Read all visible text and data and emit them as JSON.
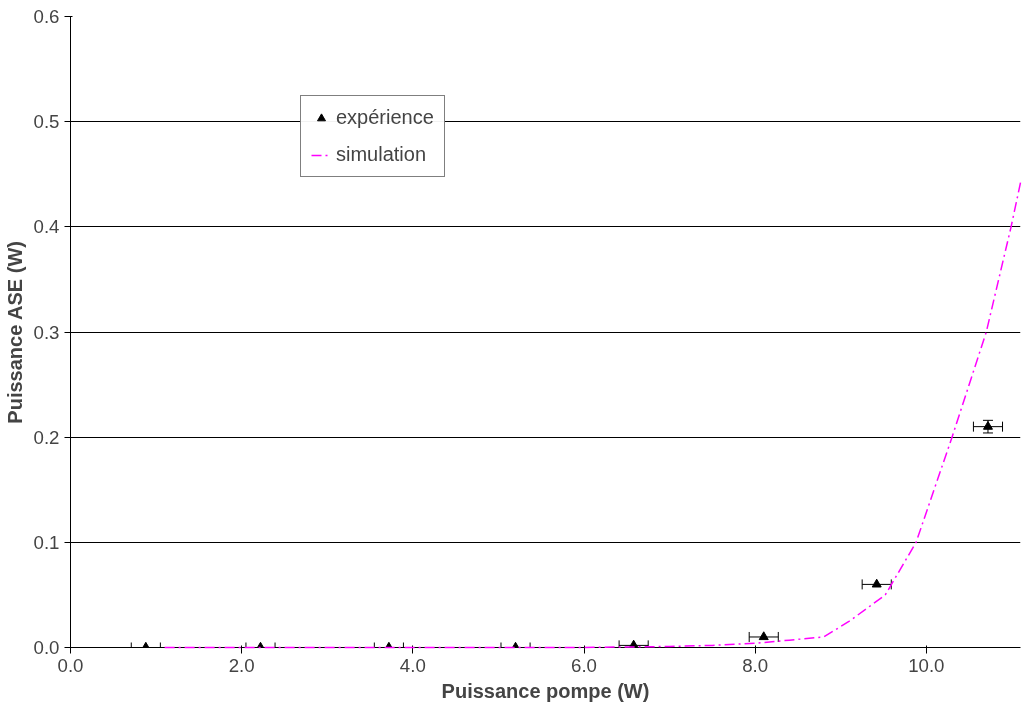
{
  "chart_data": {
    "type": "scatter",
    "xlabel": "Puissance pompe (W)",
    "ylabel": "Puissance ASE (W)",
    "xlim": [
      0,
      11.1
    ],
    "xticks": [
      {
        "value": 0,
        "label": "0.0"
      },
      {
        "value": 2,
        "label": "2.0"
      },
      {
        "value": 4,
        "label": "4.0"
      },
      {
        "value": 6,
        "label": "6.0"
      },
      {
        "value": 8,
        "label": "8.0"
      },
      {
        "value": 10,
        "label": "10.0"
      }
    ],
    "ylim": [
      0,
      0.6
    ],
    "yticks": [
      {
        "value": 0,
        "label": "0.0"
      },
      0.1,
      0.2,
      0.3,
      0.4,
      0.5,
      0.6
    ],
    "grid": "y",
    "legend": "top left",
    "series": [
      {
        "name": "expérience",
        "color": "#000000",
        "marker": "triangle",
        "x": [
          0.88,
          2.22,
          3.72,
          5.2,
          6.58,
          8.1,
          9.42,
          10.72
        ],
        "values": [
          0,
          0,
          0,
          0,
          0.002,
          0.01,
          0.06,
          0.21
        ],
        "xerrors": [
          0.17,
          0.17,
          0.17,
          0.17,
          0.17,
          0.17,
          0.17,
          0.17
        ],
        "errors": [
          null,
          null,
          null,
          null,
          null,
          null,
          null,
          0.006
        ]
      },
      {
        "name": "simulation",
        "type": "line",
        "color": "#ff00ff",
        "line_style": "dashdot",
        "x": [
          1.1,
          3,
          4.5,
          6,
          7,
          7.5,
          8,
          8.4,
          8.8,
          9.1,
          9.52,
          9.88,
          10.3,
          10.7,
          10.99,
          11.1
        ],
        "values": [
          0,
          0,
          0,
          0,
          0.001,
          0.002,
          0.004,
          0.007,
          0.01,
          0.025,
          0.05,
          0.1,
          0.2,
          0.3,
          0.4,
          0.442
        ]
      }
    ]
  }
}
